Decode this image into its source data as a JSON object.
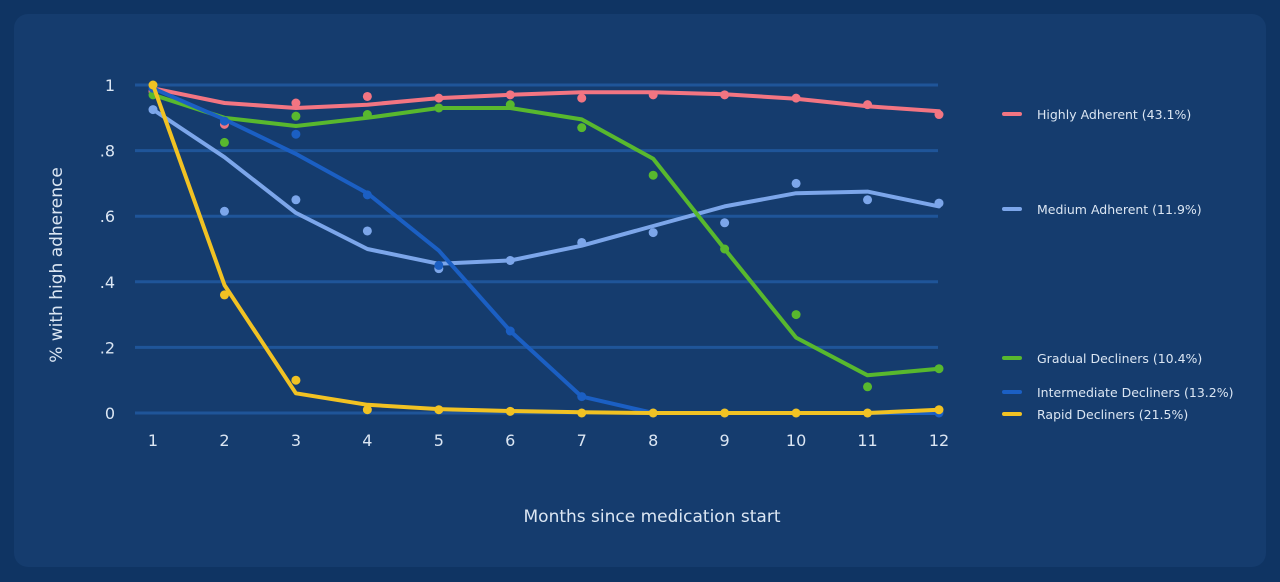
{
  "colors": {
    "page_background": "#0f3463",
    "card_background": "#153c6e",
    "gridline": "#1f5599",
    "axis_text": "#dbe6f3"
  },
  "chart_data": {
    "type": "line",
    "xlabel": "Months since medication start",
    "ylabel": "% with high adherence",
    "x": [
      1,
      2,
      3,
      4,
      5,
      6,
      7,
      8,
      9,
      10,
      11,
      12
    ],
    "xlim": [
      1,
      12
    ],
    "ylim": [
      0,
      1
    ],
    "y_ticks": [
      0,
      0.2,
      0.4,
      0.6,
      0.8,
      1
    ],
    "y_tick_labels": [
      "0",
      ".2",
      ".4",
      ".6",
      ".8",
      "1"
    ],
    "x_tick_labels": [
      "1",
      "2",
      "3",
      "4",
      "5",
      "6",
      "7",
      "8",
      "9",
      "10",
      "11",
      "12"
    ],
    "grid": "horizontal",
    "legend_position": "right",
    "series": [
      {
        "name": "Highly Adherent (43.1%)",
        "color": "#f27582",
        "line": [
          0.99,
          0.945,
          0.93,
          0.94,
          0.96,
          0.97,
          0.978,
          0.978,
          0.972,
          0.958,
          0.935,
          0.92
        ],
        "points": [
          0.98,
          0.88,
          0.945,
          0.965,
          0.96,
          0.97,
          0.96,
          0.97,
          0.97,
          0.96,
          0.94,
          0.91
        ]
      },
      {
        "name": "Medium Adherent (11.9%)",
        "color": "#7ca6ea",
        "line": [
          0.925,
          0.78,
          0.61,
          0.5,
          0.455,
          0.465,
          0.51,
          0.57,
          0.63,
          0.67,
          0.675,
          0.63
        ],
        "points": [
          0.925,
          0.615,
          0.65,
          0.555,
          0.44,
          0.465,
          0.52,
          0.55,
          0.58,
          0.7,
          0.65,
          0.64
        ]
      },
      {
        "name": "Gradual Decliners (10.4%)",
        "color": "#58b82e",
        "line": [
          0.97,
          0.9,
          0.875,
          0.9,
          0.93,
          0.93,
          0.895,
          0.775,
          0.5,
          0.23,
          0.115,
          0.135
        ],
        "points": [
          0.97,
          0.825,
          0.905,
          0.91,
          0.93,
          0.94,
          0.87,
          0.725,
          0.5,
          0.3,
          0.08,
          0.135
        ]
      },
      {
        "name": "Intermediate Decliners (13.2%)",
        "color": "#1b5fc3",
        "line": [
          0.99,
          0.895,
          0.79,
          0.67,
          0.495,
          0.25,
          0.05,
          0.0,
          0.0,
          0.0,
          0.0,
          0.0
        ],
        "points": [
          0.99,
          0.89,
          0.85,
          0.665,
          0.45,
          0.25,
          0.05,
          0.0,
          0.0,
          0.0,
          0.0,
          0.0
        ]
      },
      {
        "name": "Rapid Decliners (21.5%)",
        "color": "#f1c223",
        "line": [
          1.0,
          0.39,
          0.06,
          0.025,
          0.012,
          0.006,
          0.002,
          0.0,
          0.0,
          0.0,
          0.0,
          0.01
        ],
        "points": [
          1.0,
          0.36,
          0.1,
          0.01,
          0.01,
          0.005,
          0.0,
          0.0,
          0.0,
          0.0,
          0.0,
          0.01
        ]
      }
    ]
  }
}
